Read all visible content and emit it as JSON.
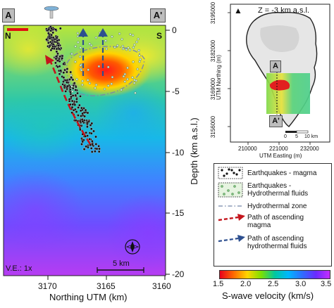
{
  "section": {
    "corner_left": "A",
    "corner_right": "A'",
    "dir_left": "N",
    "dir_right": "S",
    "depth_label": "Depth (km a.s.l.)",
    "depth_ticks": [
      "0",
      "-5",
      "-10",
      "-15",
      "-20"
    ],
    "x_label": "Northing UTM (km)",
    "x_ticks": [
      "3170",
      "3165",
      "3160"
    ],
    "ve_label": "V.E.: 1x",
    "scalebar_label": "5 km",
    "compass_letter": "N"
  },
  "inset_map": {
    "depth_label": "Z = -3 km a.s.l.",
    "point_a": "A",
    "point_a_prime": "A'",
    "y_label": "UTM Northing (m)",
    "y_ticks": [
      "3195000",
      "3182000",
      "3169000",
      "3156000"
    ],
    "x_label": "UTM Easting (m)",
    "x_ticks": [
      "210000",
      "221000",
      "232000"
    ],
    "scale_ticks": [
      "0",
      "5",
      "10 km"
    ],
    "north_marker": "▲"
  },
  "legend": {
    "items": [
      {
        "label": "Earthquakes - magma",
        "icon": "black-dot-swatch"
      },
      {
        "label": "Earthquakes -\nHydrothermal fluids",
        "icon": "green-dot-swatch"
      },
      {
        "label": "Hydrothermal zone",
        "icon": "dash-dot-line"
      },
      {
        "label": "Path of ascending\nmagma",
        "icon": "red-dashed-arrow"
      },
      {
        "label": "Path of ascending\nhydrothermal fluids",
        "icon": "blue-dashed-arrow"
      }
    ]
  },
  "colorbar": {
    "ticks": [
      "1.5",
      "2.0",
      "2.5",
      "3.0",
      "3.5"
    ],
    "label": "S-wave velocity (km/s)",
    "colors": [
      "#e8001c",
      "#ff6a00",
      "#ffd500",
      "#7ee000",
      "#00c8a0",
      "#00b6ff",
      "#2f6dff",
      "#6a2bff",
      "#c52cff"
    ]
  }
}
